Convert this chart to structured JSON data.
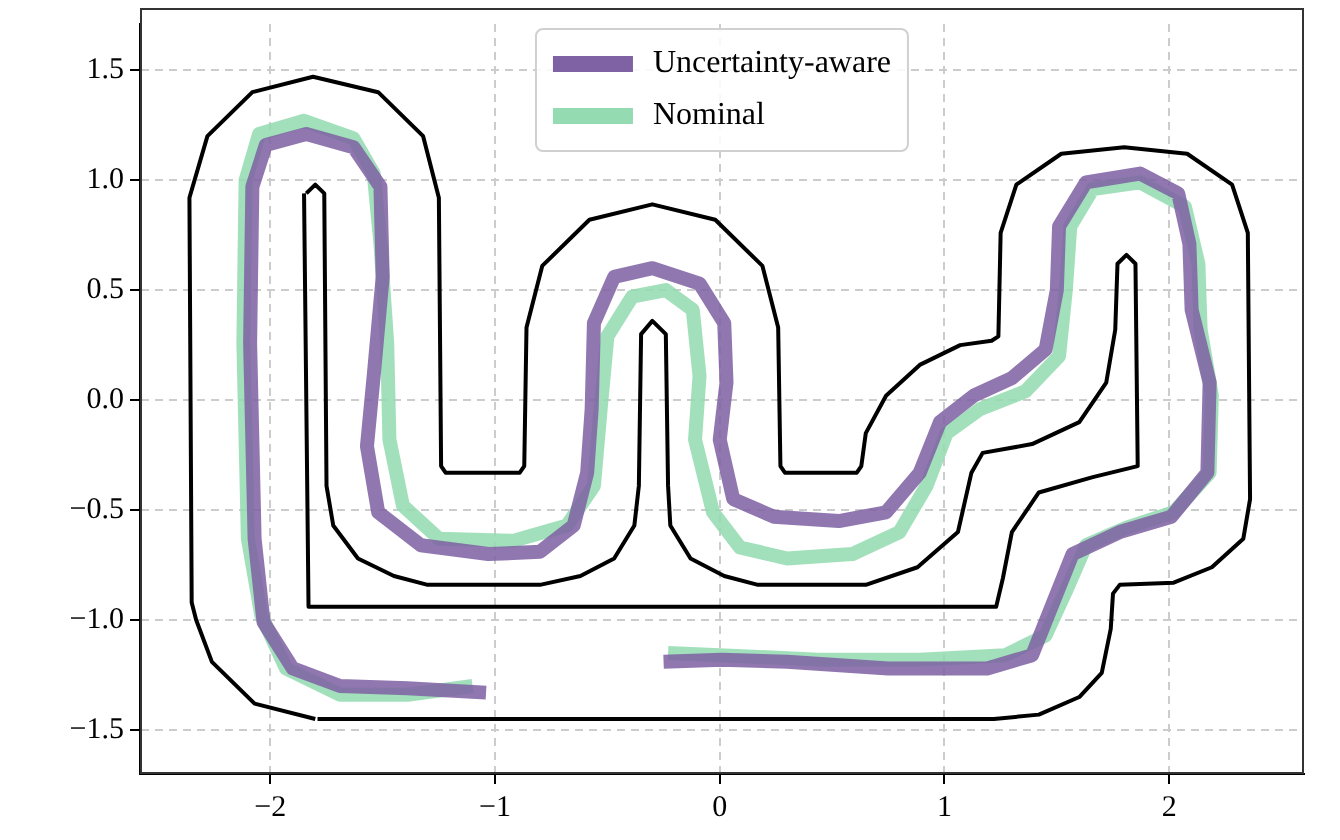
{
  "chart_data": {
    "type": "line",
    "xlim": [
      -2.58,
      2.6
    ],
    "ylim": [
      -1.7,
      1.71
    ],
    "xticks": [
      {
        "value": -2,
        "label": "−2"
      },
      {
        "value": -1,
        "label": "−1"
      },
      0,
      1,
      2
    ],
    "yticks": [
      {
        "value": -1.5,
        "label": "−1.5"
      },
      {
        "value": -1,
        "label": "−1.0"
      },
      {
        "value": -0.5,
        "label": "−0.5"
      },
      {
        "value": 0,
        "label": "0.0"
      },
      {
        "value": 0.5,
        "label": "0.5"
      },
      {
        "value": 1,
        "label": "1.0"
      },
      {
        "value": 1.5,
        "label": "1.5"
      }
    ],
    "grid": true,
    "legend": "top",
    "marker": "none",
    "line_style": "solid",
    "series": [
      {
        "color": "#000000",
        "x": [
          -1.8,
          -2.07,
          -2.26,
          -2.33,
          -2.35,
          -2.36,
          -2.28,
          -2.08,
          -1.81,
          -1.52,
          -1.32,
          -1.25,
          -1.24,
          -1.22,
          -0.89,
          -0.87,
          -0.86,
          -0.79,
          -0.58,
          -0.3,
          -0.02,
          0.19,
          0.26,
          0.27,
          0.29,
          0.61,
          0.63,
          0.65,
          0.74,
          0.89,
          1.07,
          1.21,
          1.24,
          1.25,
          1.32,
          1.52,
          1.8,
          2.08,
          2.28,
          2.35,
          2.36,
          2.33,
          2.19,
          2.02,
          1.78,
          1.75,
          1.74,
          1.7,
          1.6,
          1.42,
          1.22,
          -1.79
        ],
        "values": [
          -1.45,
          -1.38,
          -1.19,
          -1.0,
          -0.92,
          0.92,
          1.2,
          1.4,
          1.47,
          1.4,
          1.2,
          0.92,
          -0.3,
          -0.33,
          -0.33,
          -0.3,
          0.33,
          0.61,
          0.82,
          0.89,
          0.82,
          0.61,
          0.33,
          -0.3,
          -0.33,
          -0.33,
          -0.3,
          -0.15,
          0.02,
          0.16,
          0.25,
          0.27,
          0.29,
          0.76,
          0.98,
          1.12,
          1.15,
          1.12,
          0.98,
          0.76,
          -0.45,
          -0.63,
          -0.76,
          -0.83,
          -0.84,
          -0.88,
          -1.04,
          -1.24,
          -1.35,
          -1.43,
          -1.45,
          -1.45
        ]
      },
      {
        "color": "#000000",
        "x": [
          -1.84,
          -1.8,
          -1.76,
          -1.75,
          -1.72,
          -1.61,
          -1.45,
          -1.3,
          -0.8,
          -0.62,
          -0.47,
          -0.38,
          -0.36,
          -0.35,
          -0.3,
          -0.24,
          -0.23,
          -0.22,
          -0.13,
          0.02,
          0.17,
          0.65,
          0.88,
          1.06,
          1.12,
          1.17,
          1.39,
          1.6,
          1.72,
          1.76,
          1.77,
          1.81,
          1.85,
          1.86,
          1.66,
          1.42,
          1.3,
          1.26,
          1.23,
          -1.83,
          -1.85
        ],
        "values": [
          0.94,
          0.98,
          0.94,
          -0.39,
          -0.57,
          -0.72,
          -0.8,
          -0.84,
          -0.84,
          -0.8,
          -0.72,
          -0.57,
          -0.39,
          0.3,
          0.36,
          0.3,
          -0.39,
          -0.57,
          -0.72,
          -0.8,
          -0.84,
          -0.84,
          -0.76,
          -0.6,
          -0.33,
          -0.24,
          -0.2,
          -0.1,
          0.08,
          0.32,
          0.62,
          0.66,
          0.62,
          -0.3,
          -0.35,
          -0.42,
          -0.6,
          -0.81,
          -0.94,
          -0.94,
          0.94
        ]
      },
      {
        "name": "Uncertainty-aware",
        "color": "#7f62a3",
        "x": [
          -1.04,
          -1.39,
          -1.69,
          -1.9,
          -2.03,
          -2.07,
          -2.09,
          -2.08,
          -2.02,
          -1.84,
          -1.63,
          -1.51,
          -1.5,
          -1.54,
          -1.57,
          -1.52,
          -1.33,
          -1.03,
          -0.8,
          -0.65,
          -0.59,
          -0.57,
          -0.56,
          -0.47,
          -0.3,
          -0.09,
          0.02,
          0.03,
          0.0,
          0.06,
          0.24,
          0.53,
          0.74,
          0.89,
          0.98,
          1.13,
          1.3,
          1.45,
          1.5,
          1.51,
          1.63,
          1.87,
          2.04,
          2.09,
          2.1,
          2.18,
          2.17,
          2.01,
          1.78,
          1.57,
          1.48,
          1.39,
          1.19,
          0.75,
          0.3,
          0.01,
          -0.25
        ],
        "values": [
          -1.33,
          -1.31,
          -1.3,
          -1.22,
          -1.01,
          -0.63,
          0.26,
          0.97,
          1.16,
          1.21,
          1.15,
          0.97,
          0.56,
          0.11,
          -0.21,
          -0.51,
          -0.66,
          -0.7,
          -0.69,
          -0.57,
          -0.33,
          -0.04,
          0.35,
          0.56,
          0.6,
          0.53,
          0.35,
          0.08,
          -0.18,
          -0.45,
          -0.53,
          -0.55,
          -0.51,
          -0.33,
          -0.1,
          0.02,
          0.1,
          0.23,
          0.5,
          0.79,
          0.99,
          1.03,
          0.94,
          0.71,
          0.41,
          0.08,
          -0.33,
          -0.53,
          -0.6,
          -0.7,
          -0.93,
          -1.16,
          -1.22,
          -1.22,
          -1.19,
          -1.18,
          -1.19
        ]
      },
      {
        "name": "Nominal",
        "color": "#94dbb2",
        "x": [
          -1.1,
          -1.39,
          -1.69,
          -1.93,
          -2.04,
          -2.1,
          -2.12,
          -2.11,
          -2.05,
          -1.85,
          -1.63,
          -1.54,
          -1.51,
          -1.48,
          -1.47,
          -1.41,
          -1.25,
          -0.92,
          -0.68,
          -0.56,
          -0.53,
          -0.5,
          -0.39,
          -0.24,
          -0.12,
          -0.09,
          -0.11,
          -0.03,
          0.09,
          0.3,
          0.59,
          0.8,
          0.92,
          1.01,
          1.16,
          1.36,
          1.51,
          1.54,
          1.56,
          1.66,
          1.87,
          2.07,
          2.13,
          2.14,
          2.19,
          2.18,
          2.02,
          1.81,
          1.63,
          1.54,
          1.45,
          1.27,
          0.89,
          0.44,
          0.0,
          -0.23
        ],
        "values": [
          -1.3,
          -1.34,
          -1.34,
          -1.22,
          -0.98,
          -0.63,
          0.26,
          1.0,
          1.21,
          1.27,
          1.19,
          1.03,
          0.71,
          0.26,
          -0.18,
          -0.48,
          -0.63,
          -0.64,
          -0.57,
          -0.39,
          -0.04,
          0.29,
          0.47,
          0.5,
          0.41,
          0.11,
          -0.18,
          -0.51,
          -0.67,
          -0.72,
          -0.7,
          -0.6,
          -0.39,
          -0.15,
          -0.04,
          0.04,
          0.2,
          0.5,
          0.79,
          0.96,
          0.99,
          0.88,
          0.62,
          0.32,
          0.02,
          -0.33,
          -0.51,
          -0.58,
          -0.66,
          -0.87,
          -1.07,
          -1.16,
          -1.18,
          -1.18,
          -1.16,
          -1.15
        ]
      }
    ]
  }
}
